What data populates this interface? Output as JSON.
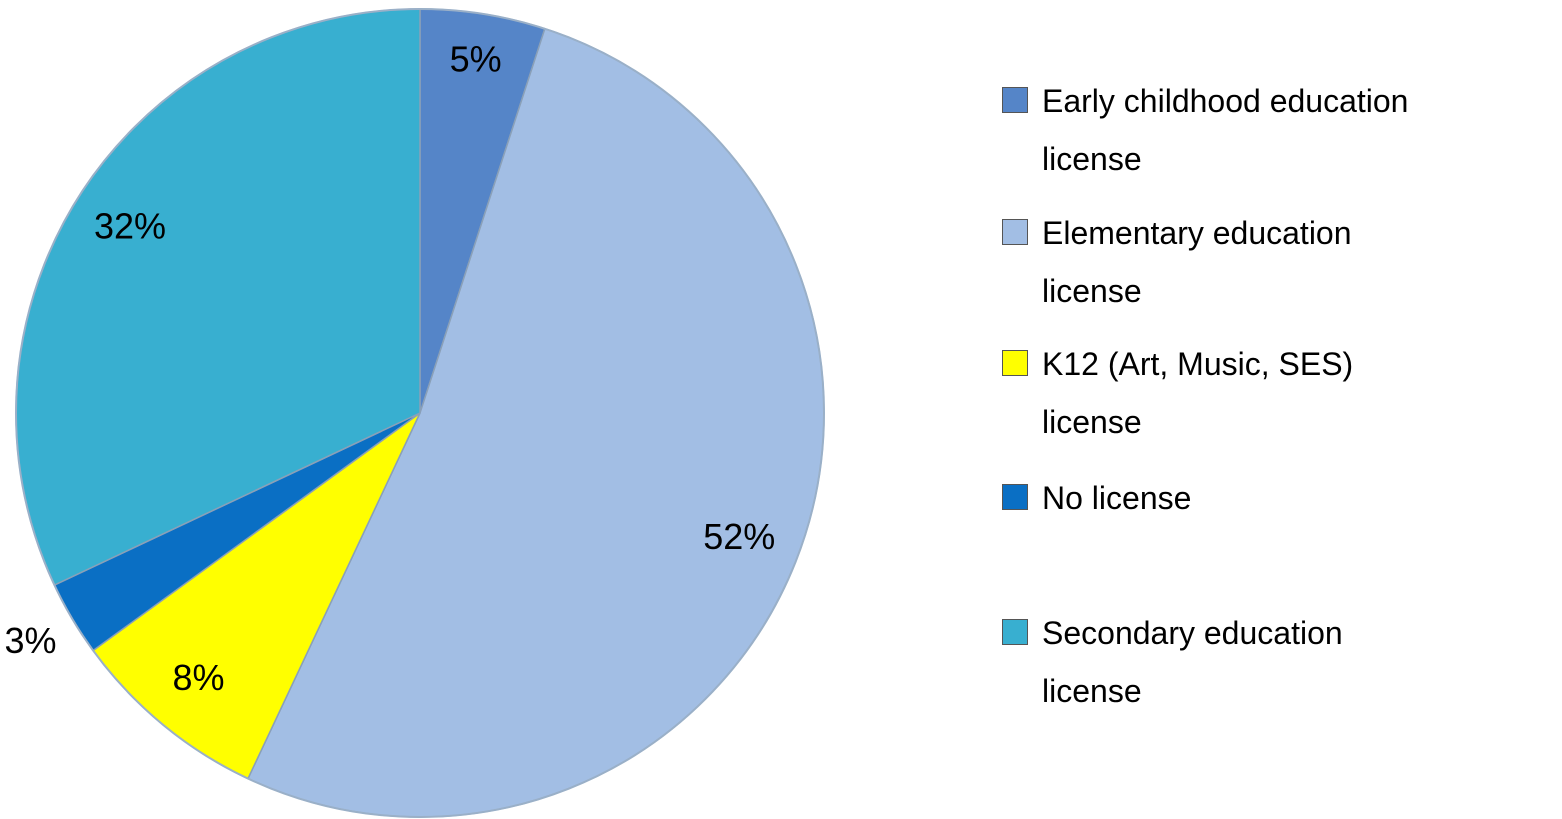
{
  "chart_data": {
    "type": "pie",
    "categories": [
      "Early childhood education license",
      "Elementary education license",
      "K12 (Art, Music, SES) license",
      "No license",
      "Secondary education license"
    ],
    "values": [
      5,
      52,
      8,
      3,
      32
    ],
    "value_labels": [
      "5%",
      "52%",
      "8%",
      "3%",
      "32%"
    ],
    "colors": [
      "#5585c8",
      "#a2bee4",
      "#ffff00",
      "#0a6fc4",
      "#38afd0"
    ],
    "legend": "right"
  }
}
